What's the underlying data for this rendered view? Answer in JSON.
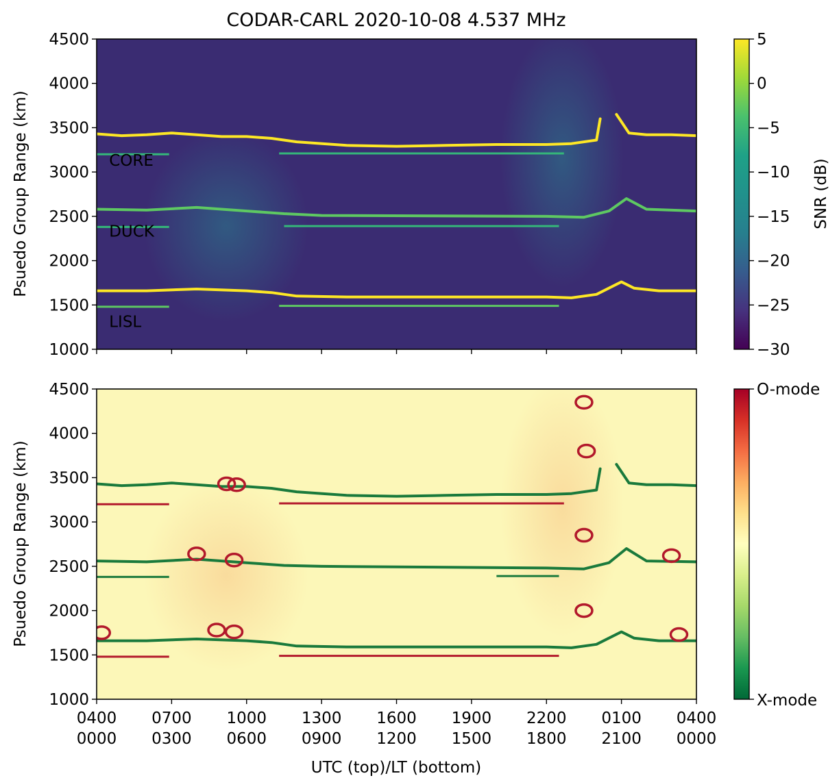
{
  "title": "CODAR-CARL 2020-10-08 4.537 MHz",
  "xlabel": "UTC (top)/LT (bottom)",
  "chart_data": [
    {
      "type": "heatmap",
      "panel": "top",
      "ylabel": "Psuedo Group Range (km)",
      "ylim": [
        1000,
        4500
      ],
      "yticks": [
        1000,
        1500,
        2000,
        2500,
        3000,
        3500,
        4000,
        4500
      ],
      "x_ticks_utc": [
        "0400",
        "0700",
        "1000",
        "1300",
        "1600",
        "1900",
        "2200",
        "0100",
        "0400"
      ],
      "x_ticks_lt": [
        "0000",
        "0300",
        "0600",
        "0900",
        "1200",
        "1500",
        "1800",
        "2100",
        "0000"
      ],
      "x_tick_labels_shown": false,
      "colorbar": {
        "label": "SNR (dB)",
        "colormap": "viridis",
        "range": [
          -30,
          5
        ],
        "ticks": [
          5,
          0,
          -5,
          -10,
          -15,
          -20,
          -25,
          -30
        ],
        "tick_labels": [
          "5",
          "0",
          "−5",
          "−10",
          "−15",
          "−20",
          "−25",
          "−30"
        ]
      },
      "annotations": [
        {
          "text": "CORE",
          "x_hour_utc": 4.5,
          "y_km": 3070
        },
        {
          "text": "DUCK",
          "x_hour_utc": 4.5,
          "y_km": 2270
        },
        {
          "text": "LISL",
          "x_hour_utc": 4.5,
          "y_km": 1250
        }
      ],
      "traces": [
        {
          "name": "core_main",
          "color": "#fde725",
          "x": [
            4.0,
            5.0,
            6.0,
            7.0,
            8.0,
            9.0,
            10.0,
            11.0,
            12.0,
            14.0,
            16.0,
            18.0,
            20.0,
            22.0,
            23.0,
            24.0,
            24.15
          ],
          "y": [
            3430,
            3410,
            3420,
            3440,
            3420,
            3400,
            3400,
            3380,
            3340,
            3300,
            3290,
            3300,
            3310,
            3310,
            3320,
            3360,
            3600
          ]
        },
        {
          "name": "core_after",
          "color": "#fde725",
          "x": [
            24.8,
            25.3,
            26.0,
            27.0,
            28.0
          ],
          "y": [
            3650,
            3440,
            3420,
            3420,
            3410
          ]
        },
        {
          "name": "duck_main",
          "color": "#5ec962",
          "x": [
            4.0,
            6.0,
            8.0,
            10.0,
            11.5,
            13.0,
            22.0,
            23.5,
            24.5,
            25.2,
            26.0,
            28.0
          ],
          "y": [
            2580,
            2570,
            2600,
            2560,
            2530,
            2510,
            2500,
            2490,
            2560,
            2700,
            2580,
            2560
          ]
        },
        {
          "name": "lisl_main",
          "color": "#fde725",
          "x": [
            4.0,
            6.0,
            8.0,
            10.0,
            11.0,
            12.0,
            14.0,
            16.0,
            18.0,
            20.0,
            22.0,
            23.0,
            24.0,
            25.0,
            25.5,
            26.5,
            28.0
          ],
          "y": [
            1660,
            1660,
            1680,
            1660,
            1640,
            1600,
            1590,
            1590,
            1590,
            1590,
            1590,
            1580,
            1620,
            1760,
            1690,
            1660,
            1660
          ]
        },
        {
          "name": "core_carrier",
          "color": "#35b779",
          "segments": [
            [
              4.0,
              6.9,
              3200
            ],
            [
              11.3,
              22.7,
              3210
            ]
          ]
        },
        {
          "name": "duck_carrier",
          "color": "#35b779",
          "segments": [
            [
              4.0,
              6.9,
              2380
            ],
            [
              11.5,
              22.5,
              2390
            ]
          ]
        },
        {
          "name": "lisl_carrier",
          "color": "#5ec962",
          "segments": [
            [
              4.0,
              6.9,
              1480
            ],
            [
              11.3,
              22.5,
              1490
            ]
          ]
        }
      ]
    },
    {
      "type": "heatmap",
      "panel": "bottom",
      "ylabel": "Psuedo Group Range (km)",
      "ylim": [
        1000,
        4500
      ],
      "yticks": [
        1000,
        1500,
        2000,
        2500,
        3000,
        3500,
        4000,
        4500
      ],
      "x_ticks_utc": [
        "0400",
        "0700",
        "1000",
        "1300",
        "1600",
        "1900",
        "2200",
        "0100",
        "0400"
      ],
      "x_ticks_lt": [
        "0000",
        "0300",
        "0600",
        "0900",
        "1200",
        "1500",
        "1800",
        "2100",
        "0000"
      ],
      "colorbar": {
        "colormap": "RdYlGn_r",
        "top_label": "O-mode",
        "bottom_label": "X-mode"
      },
      "traces": [
        {
          "name": "core_xmode",
          "color": "#1a7a3c",
          "x": [
            4.0,
            5.0,
            6.0,
            7.0,
            8.0,
            9.0,
            10.0,
            11.0,
            12.0,
            14.0,
            16.0,
            18.0,
            20.0,
            22.0,
            23.0,
            24.0,
            24.15
          ],
          "y": [
            3430,
            3410,
            3420,
            3440,
            3420,
            3400,
            3400,
            3380,
            3340,
            3300,
            3290,
            3300,
            3310,
            3310,
            3320,
            3360,
            3600
          ]
        },
        {
          "name": "core_xmode_after",
          "color": "#1a7a3c",
          "x": [
            24.8,
            25.3,
            26.0,
            27.0,
            28.0
          ],
          "y": [
            3650,
            3440,
            3420,
            3420,
            3410
          ]
        },
        {
          "name": "duck_xmode",
          "color": "#1a7a3c",
          "x": [
            4.0,
            6.0,
            8.0,
            10.0,
            11.5,
            13.0,
            22.0,
            23.5,
            24.5,
            25.2,
            26.0,
            28.0
          ],
          "y": [
            2560,
            2550,
            2580,
            2540,
            2510,
            2500,
            2480,
            2470,
            2540,
            2700,
            2560,
            2550
          ]
        },
        {
          "name": "lisl_xmode",
          "color": "#1a7a3c",
          "x": [
            4.0,
            6.0,
            8.0,
            10.0,
            11.0,
            12.0,
            14.0,
            16.0,
            18.0,
            20.0,
            22.0,
            23.0,
            24.0,
            25.0,
            25.5,
            26.5,
            28.0
          ],
          "y": [
            1660,
            1660,
            1680,
            1660,
            1640,
            1600,
            1590,
            1590,
            1590,
            1590,
            1590,
            1580,
            1620,
            1760,
            1690,
            1660,
            1660
          ]
        },
        {
          "name": "core_omode_carrier",
          "color": "#b2182b",
          "segments": [
            [
              4.0,
              6.9,
              3200
            ],
            [
              11.3,
              22.7,
              3210
            ]
          ]
        },
        {
          "name": "lisl_omode_carrier",
          "color": "#b2182b",
          "segments": [
            [
              4.0,
              6.9,
              1480
            ],
            [
              11.3,
              22.5,
              1490
            ]
          ]
        },
        {
          "name": "duck_xmode_carrier",
          "color": "#1a7a3c",
          "segments": [
            [
              4.0,
              6.9,
              2380
            ],
            [
              20.0,
              22.5,
              2390
            ]
          ]
        },
        {
          "name": "omode_loops",
          "color": "#b2182b",
          "points": [
            [
              9.2,
              3430
            ],
            [
              9.6,
              3420
            ],
            [
              8.0,
              2640
            ],
            [
              9.5,
              2570
            ],
            [
              27.0,
              2620
            ],
            [
              8.8,
              1780
            ],
            [
              9.5,
              1760
            ],
            [
              27.3,
              1730
            ],
            [
              4.2,
              1750
            ]
          ]
        },
        {
          "name": "omode_patch",
          "color": "#b2182b",
          "points": [
            [
              23.5,
              4350
            ],
            [
              23.6,
              3800
            ],
            [
              23.5,
              2850
            ],
            [
              23.5,
              2000
            ]
          ]
        }
      ]
    }
  ]
}
